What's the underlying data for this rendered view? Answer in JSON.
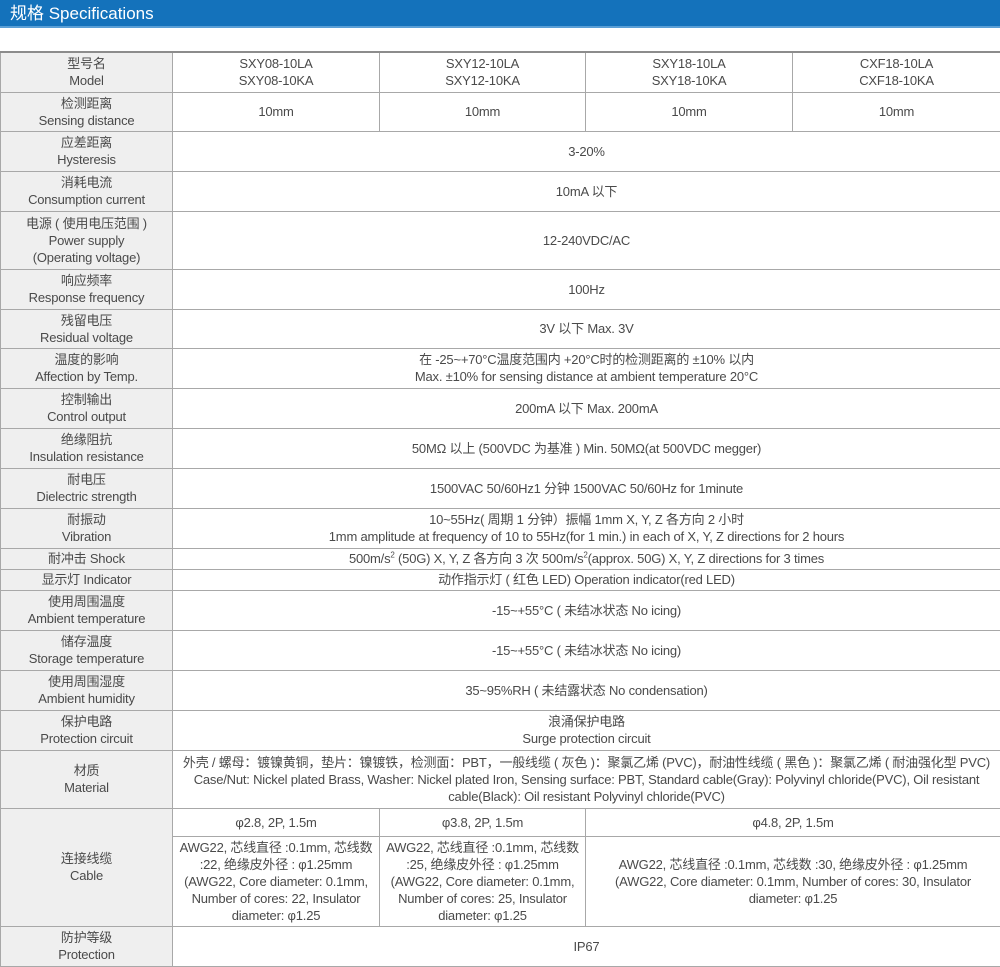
{
  "header": {
    "title": "规格 Specifications",
    "accent_color": "#1472bb"
  },
  "rows": [
    {
      "label_cn": "型号名",
      "label_en": "Model",
      "values": [
        [
          "SXY08-10LA",
          "SXY08-10KA"
        ],
        [
          "SXY12-10LA",
          "SXY12-10KA"
        ],
        [
          "SXY18-10LA",
          "SXY18-10KA"
        ],
        [
          "CXF18-10LA",
          "CXF18-10KA"
        ]
      ]
    },
    {
      "label_cn": "检测距离",
      "label_en": "Sensing distance",
      "values": [
        "10mm",
        "10mm",
        "10mm",
        "10mm"
      ]
    },
    {
      "label_cn": "应差距离",
      "label_en": "Hysteresis",
      "value": "3-20%"
    },
    {
      "label_cn": "消耗电流",
      "label_en": "Consumption current",
      "value": "10mA 以下"
    },
    {
      "label_cn": "电源 ( 使用电压范围 )",
      "label_en": "Power supply",
      "label_en2": "(Operating voltage)",
      "value": "12-240VDC/AC"
    },
    {
      "label_cn": "响应频率",
      "label_en": "Response frequency",
      "value": "100Hz"
    },
    {
      "label_cn": "残留电压",
      "label_en": "Residual voltage",
      "value": "3V 以下 Max. 3V"
    },
    {
      "label_cn": "温度的影响",
      "label_en": "Affection by Temp.",
      "value": "在 -25~+70°C温度范围内 +20°C时的检测距离的 ±10% 以内",
      "value2": "Max. ±10% for sensing distance at ambient temperature 20°C"
    },
    {
      "label_cn": "控制输出",
      "label_en": "Control output",
      "value": "200mA 以下 Max. 200mA"
    },
    {
      "label_cn": "绝缘阻抗",
      "label_en": "Insulation resistance",
      "value": "50MΩ 以上 (500VDC 为基准 ) Min. 50MΩ(at 500VDC megger)"
    },
    {
      "label_cn": "耐电压",
      "label_en": "Dielectric strength",
      "value": "1500VAC 50/60Hz1 分钟 1500VAC 50/60Hz for 1minute"
    },
    {
      "label_cn": "耐振动",
      "label_en": "Vibration",
      "value": "10~55Hz( 周期 1 分钟）振幅 1mm X, Y, Z 各方向 2 小时",
      "value2": "1mm amplitude at frequency of 10 to 55Hz(for 1 min.) in each of X, Y, Z directions for 2 hours"
    },
    {
      "label": "耐冲击 Shock",
      "parts": [
        "500m/s",
        "2",
        " (50G) X, Y, Z 各方向 3 次 500m/s",
        "2",
        "(approx. 50G) X, Y, Z directions for 3 times"
      ]
    },
    {
      "label": "显示灯 Indicator",
      "value": "动作指示灯 ( 红色 LED) Operation indicator(red LED)"
    },
    {
      "label_cn": "使用周围温度",
      "label_en": "Ambient temperature",
      "value": "-15~+55°C ( 未结冰状态 No icing)"
    },
    {
      "label_cn": "储存温度",
      "label_en": "Storage temperature",
      "value": "-15~+55°C ( 未结冰状态 No icing)"
    },
    {
      "label_cn": "使用周围湿度",
      "label_en": "Ambient humidity",
      "value": "35~95%RH ( 未结露状态 No condensation)"
    },
    {
      "label_cn": "保护电路",
      "label_en": "Protection circuit",
      "value": "浪涌保护电路",
      "value2": "Surge protection circuit"
    },
    {
      "label_cn": "材质",
      "label_en": "Material",
      "value": "外壳 / 螺母：镀镍黄铜，垫片：镍镀铁，检测面：PBT，一般线缆 ( 灰色 )：聚氯乙烯 (PVC)，耐油性线缆 ( 黑色 )：聚氯乙烯 ( 耐油强化型 PVC)  Case/Nut: Nickel plated Brass, Washer: Nickel plated Iron, Sensing surface: PBT, Standard cable(Gray): Polyvinyl chloride(PVC), Oil resistant cable(Black): Oil resistant Polyvinyl chloride(PVC)"
    },
    {
      "label_cn": "连接线缆",
      "label_en": "Cable",
      "specs": [
        "φ2.8, 2P, 1.5m",
        "φ3.8, 2P, 1.5m",
        "φ4.8, 2P, 1.5m"
      ],
      "details": [
        "AWG22, 芯线直径 :0.1mm, 芯线数 :22, 绝缘皮外径 : φ1.25mm (AWG22, Core diameter: 0.1mm, Number of cores: 22, Insulator diameter: φ1.25",
        "AWG22, 芯线直径 :0.1mm, 芯线数 :25, 绝缘皮外径 : φ1.25mm (AWG22, Core diameter: 0.1mm, Number of cores: 25, Insulator diameter: φ1.25",
        "AWG22, 芯线直径 :0.1mm, 芯线数 :30, 绝缘皮外径 : φ1.25mm (AWG22, Core diameter: 0.1mm, Number of cores: 30, Insulator diameter: φ1.25"
      ]
    },
    {
      "label_cn": "防护等级",
      "label_en": "Protection",
      "value": "IP67"
    }
  ]
}
